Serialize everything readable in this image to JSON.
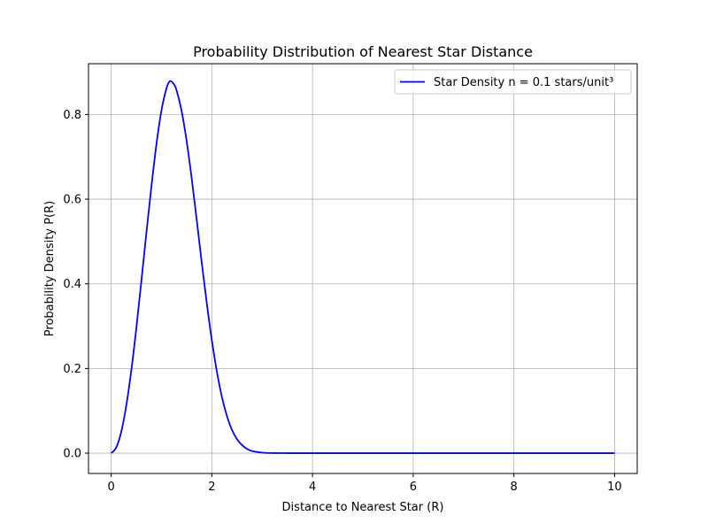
{
  "chart_data": {
    "type": "line",
    "title": "Probability Distribution of Nearest Star Distance",
    "xlabel": "Distance to Nearest Star (R)",
    "ylabel": "Probability Density P(R)",
    "xlim": [
      -0.45,
      10.45
    ],
    "ylim": [
      -0.048,
      0.92
    ],
    "xticks": [
      0,
      2,
      4,
      6,
      8,
      10
    ],
    "yticks": [
      0.0,
      0.2,
      0.4,
      0.6,
      0.8
    ],
    "xtick_labels": [
      "0",
      "2",
      "4",
      "6",
      "8",
      "10"
    ],
    "ytick_labels": [
      "0.0",
      "0.2",
      "0.4",
      "0.6",
      "0.8"
    ],
    "grid": true,
    "legend_position": "top-right",
    "series": [
      {
        "name": "Star Density n = 0.1 stars/unit³",
        "color": "#0000ff",
        "x": [
          0,
          0.1,
          0.2,
          0.3,
          0.4,
          0.5,
          0.6,
          0.7,
          0.8,
          0.9,
          1.0,
          1.1,
          1.17,
          1.25,
          1.3,
          1.4,
          1.5,
          1.6,
          1.7,
          1.8,
          1.9,
          2.0,
          2.1,
          2.2,
          2.3,
          2.4,
          2.5,
          2.6,
          2.7,
          2.8,
          3.0,
          3.2,
          3.5,
          4,
          5,
          6,
          7,
          8,
          9,
          10
        ],
        "y": [
          0.0,
          0.013,
          0.05,
          0.112,
          0.195,
          0.295,
          0.406,
          0.52,
          0.63,
          0.73,
          0.81,
          0.862,
          0.879,
          0.871,
          0.857,
          0.808,
          0.737,
          0.649,
          0.551,
          0.45,
          0.354,
          0.267,
          0.193,
          0.133,
          0.088,
          0.055,
          0.033,
          0.019,
          0.01,
          0.005,
          0.0012,
          0.0002,
          0.0,
          0.0,
          0.0,
          0.0,
          0.0,
          0.0,
          0.0,
          0.0
        ]
      }
    ]
  }
}
